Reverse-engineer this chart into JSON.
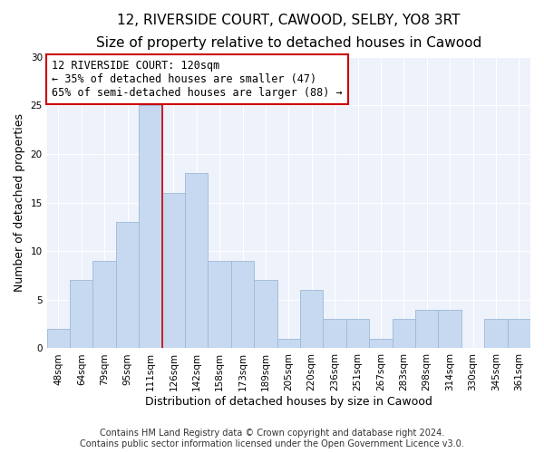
{
  "title": "12, RIVERSIDE COURT, CAWOOD, SELBY, YO8 3RT",
  "subtitle": "Size of property relative to detached houses in Cawood",
  "xlabel": "Distribution of detached houses by size in Cawood",
  "ylabel": "Number of detached properties",
  "categories": [
    "48sqm",
    "64sqm",
    "79sqm",
    "95sqm",
    "111sqm",
    "126sqm",
    "142sqm",
    "158sqm",
    "173sqm",
    "189sqm",
    "205sqm",
    "220sqm",
    "236sqm",
    "251sqm",
    "267sqm",
    "283sqm",
    "298sqm",
    "314sqm",
    "330sqm",
    "345sqm",
    "361sqm"
  ],
  "values": [
    2,
    7,
    9,
    13,
    25,
    16,
    18,
    9,
    9,
    7,
    1,
    6,
    3,
    3,
    1,
    3,
    4,
    4,
    0,
    3,
    3
  ],
  "bar_color": "#c6d9f0",
  "bar_edge_color": "#9db8d8",
  "property_line_color": "#cc0000",
  "annotation_text": "12 RIVERSIDE COURT: 120sqm\n← 35% of detached houses are smaller (47)\n65% of semi-detached houses are larger (88) →",
  "annotation_box_color": "#ffffff",
  "annotation_box_edge_color": "#cc0000",
  "ylim": [
    0,
    30
  ],
  "yticks": [
    0,
    5,
    10,
    15,
    20,
    25,
    30
  ],
  "footer_line1": "Contains HM Land Registry data © Crown copyright and database right 2024.",
  "footer_line2": "Contains public sector information licensed under the Open Government Licence v3.0.",
  "title_fontsize": 11,
  "subtitle_fontsize": 10,
  "axis_label_fontsize": 9,
  "tick_fontsize": 7.5,
  "annotation_fontsize": 8.5,
  "footer_fontsize": 7,
  "background_color": "#edf2fb"
}
